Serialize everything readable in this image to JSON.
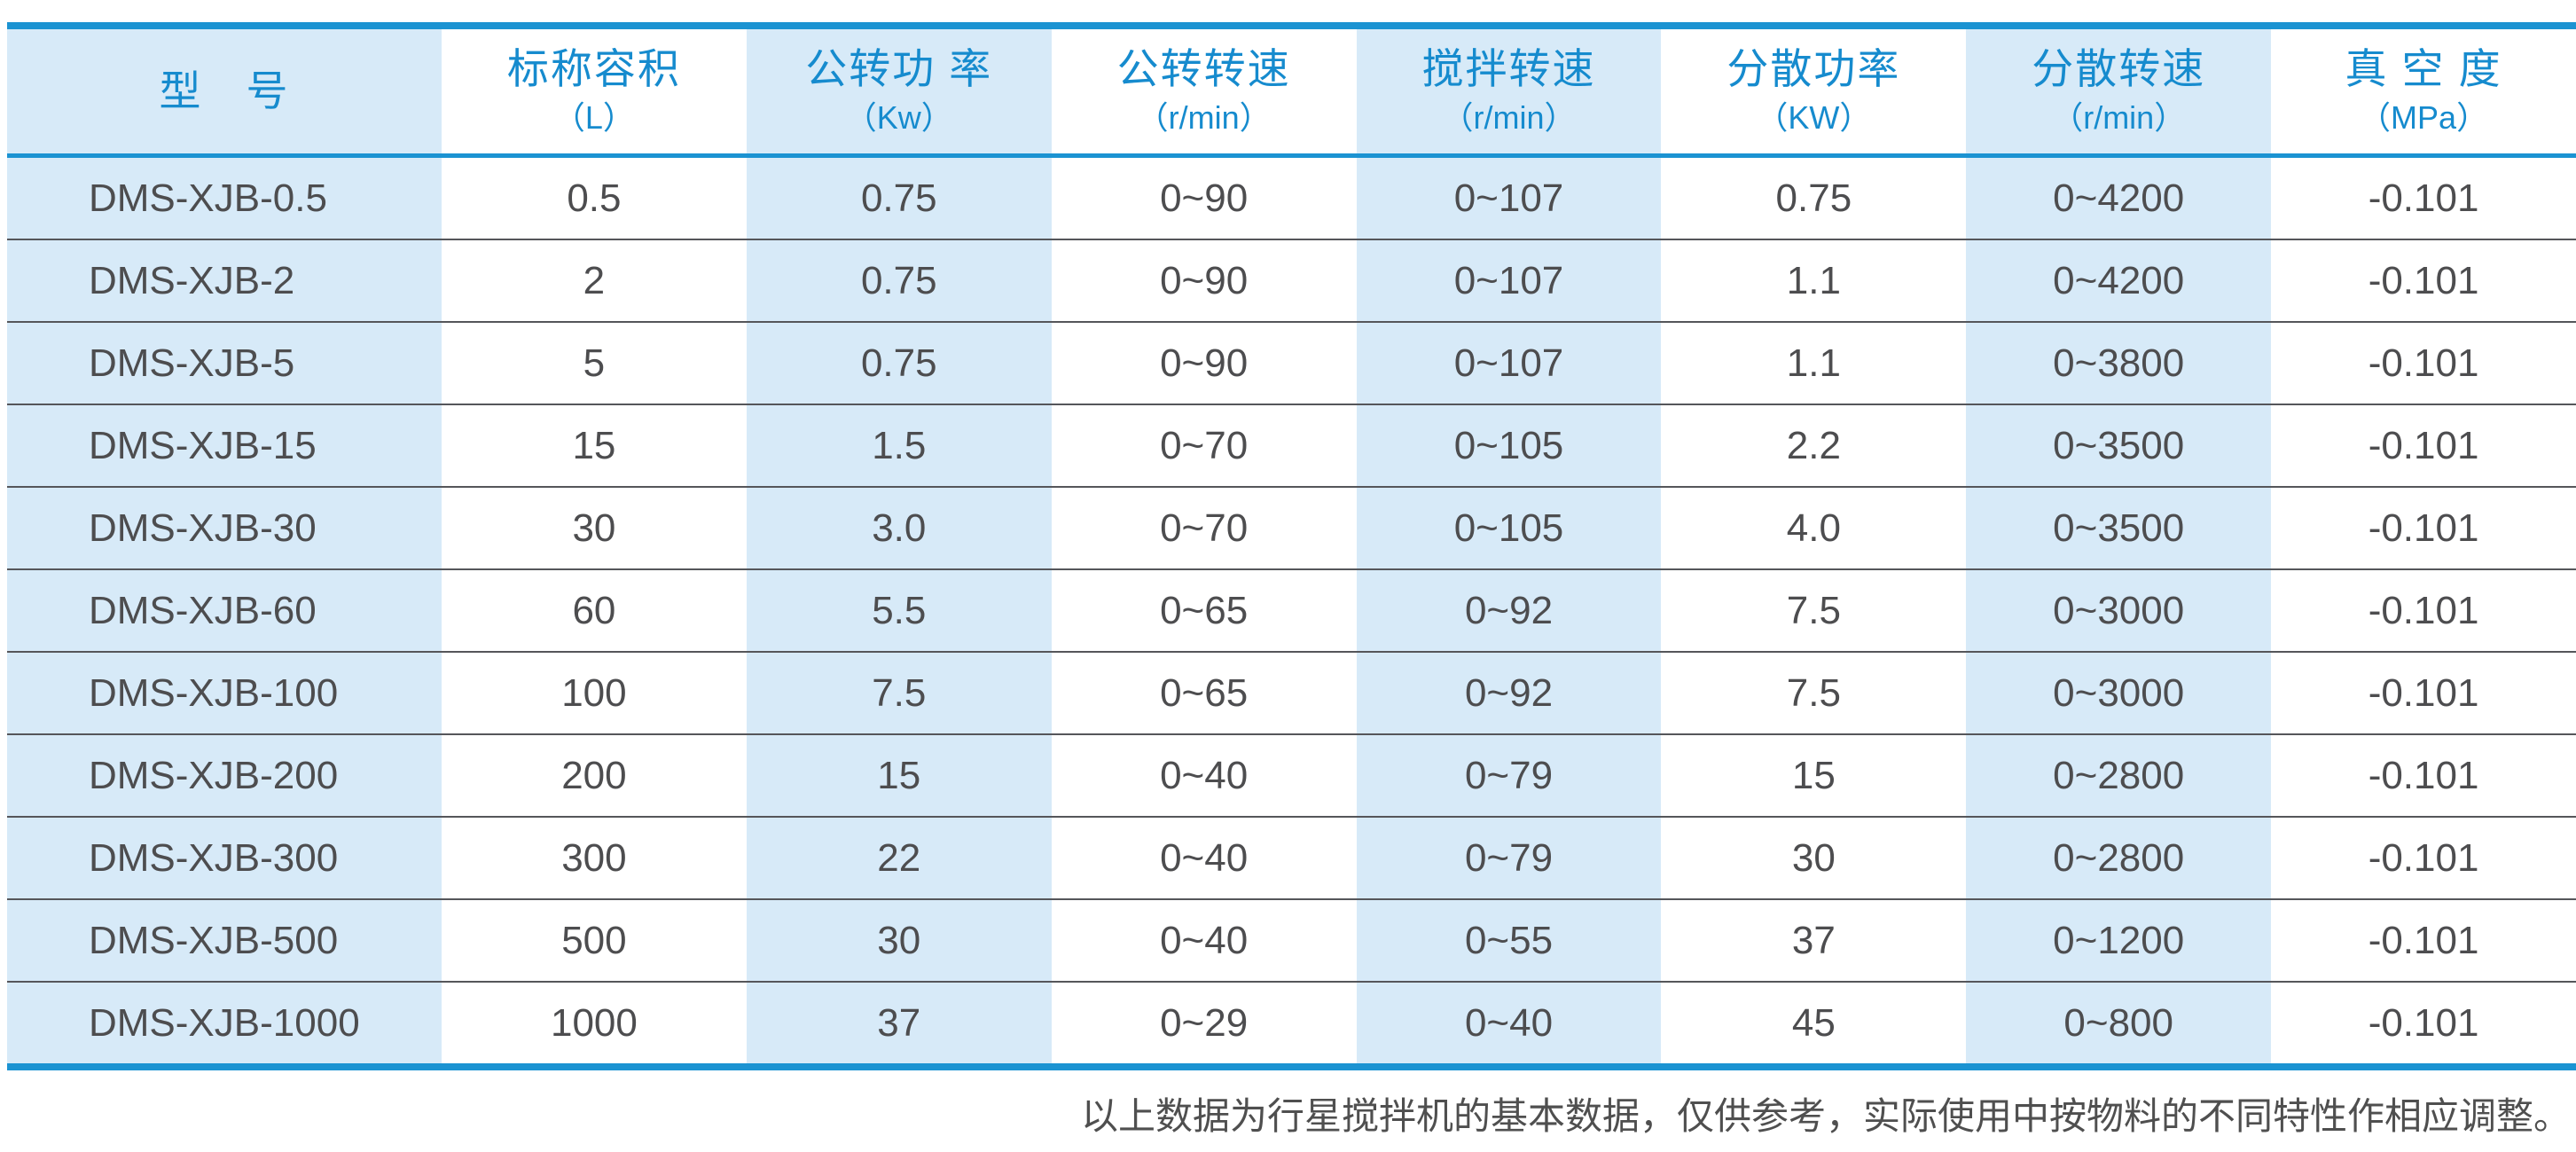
{
  "chart_data": {
    "type": "table",
    "columns": [
      {
        "label": "型　号",
        "unit": "",
        "shaded": true
      },
      {
        "label": "标称容积",
        "unit": "（L）",
        "shaded": false
      },
      {
        "label": "公转功 率",
        "unit": "（Kw）",
        "shaded": true
      },
      {
        "label": "公转转速",
        "unit": "（r/min）",
        "shaded": false
      },
      {
        "label": "搅拌转速",
        "unit": "（r/min）",
        "shaded": true
      },
      {
        "label": "分散功率",
        "unit": "（KW）",
        "shaded": false
      },
      {
        "label": "分散转速",
        "unit": "（r/min）",
        "shaded": true
      },
      {
        "label": "真 空 度",
        "unit": "（MPa）",
        "shaded": false
      }
    ],
    "rows": [
      [
        "DMS-XJB-0.5",
        "0.5",
        "0.75",
        "0~90",
        "0~107",
        "0.75",
        "0~4200",
        "-0.101"
      ],
      [
        "DMS-XJB-2",
        "2",
        "0.75",
        "0~90",
        "0~107",
        "1.1",
        "0~4200",
        "-0.101"
      ],
      [
        "DMS-XJB-5",
        "5",
        "0.75",
        "0~90",
        "0~107",
        "1.1",
        "0~3800",
        "-0.101"
      ],
      [
        "DMS-XJB-15",
        "15",
        "1.5",
        "0~70",
        "0~105",
        "2.2",
        "0~3500",
        "-0.101"
      ],
      [
        "DMS-XJB-30",
        "30",
        "3.0",
        "0~70",
        "0~105",
        "4.0",
        "0~3500",
        "-0.101"
      ],
      [
        "DMS-XJB-60",
        "60",
        "5.5",
        "0~65",
        "0~92",
        "7.5",
        "0~3000",
        "-0.101"
      ],
      [
        "DMS-XJB-100",
        "100",
        "7.5",
        "0~65",
        "0~92",
        "7.5",
        "0~3000",
        "-0.101"
      ],
      [
        "DMS-XJB-200",
        "200",
        "15",
        "0~40",
        "0~79",
        "15",
        "0~2800",
        "-0.101"
      ],
      [
        "DMS-XJB-300",
        "300",
        "22",
        "0~40",
        "0~79",
        "30",
        "0~2800",
        "-0.101"
      ],
      [
        "DMS-XJB-500",
        "500",
        "30",
        "0~40",
        "0~55",
        "37",
        "0~1200",
        "-0.101"
      ],
      [
        "DMS-XJB-1000",
        "1000",
        "37",
        "0~29",
        "0~40",
        "45",
        "0~800",
        "-0.101"
      ]
    ]
  },
  "footer": {
    "note": "以上数据为行星搅拌机的基本数据，仅供参考，实际使用中按物料的不同特性作相应调整。"
  },
  "colors": {
    "accent_border": "#1b93d2",
    "header_text": "#168bce",
    "shaded_column_bg": "#d7eaf8",
    "body_text": "#4d4d4f",
    "row_separator": "#55565a"
  }
}
